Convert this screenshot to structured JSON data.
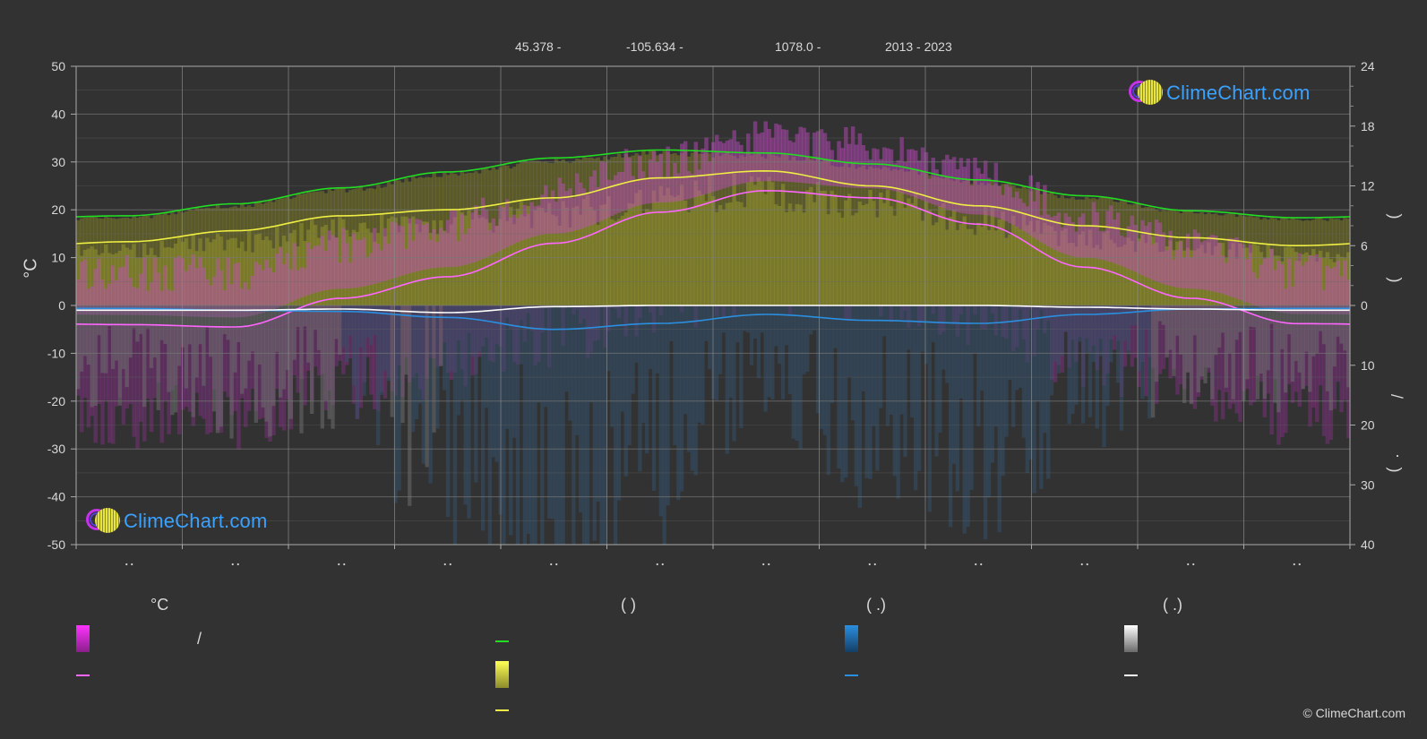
{
  "header": {
    "lat": "45.378 -",
    "lon": "-105.634 -",
    "elev": "1078.0 -",
    "years": "2013 - 2023"
  },
  "axes": {
    "left_unit": "°C",
    "right_top_paren": ")",
    "right_mid_paren": ")",
    "right_slash": "/",
    "right_dot": "·",
    "right_low_paren": ")"
  },
  "legend": {
    "col1_title": "°C",
    "col1_slash": "/",
    "col2_title": "(          )",
    "col3_title": "(    .)",
    "col4_title": "(    .)"
  },
  "logo_text": "ClimeChart.com",
  "copyright": "© ClimeChart.com",
  "colors": {
    "background": "#323232",
    "daylight": "#22dd22",
    "sunshine": "#eeee44",
    "temp_mean": "#ff66ff",
    "rain": "#2a8fe0",
    "snow": "#ffffff"
  },
  "chart_data": {
    "type": "line",
    "x": [
      "Jan",
      "Feb",
      "Mar",
      "Apr",
      "May",
      "Jun",
      "Jul",
      "Aug",
      "Sep",
      "Oct",
      "Nov",
      "Dec"
    ],
    "y_left_ticks": [
      50,
      40,
      30,
      20,
      10,
      0,
      -10,
      -20,
      -30,
      -40,
      -50
    ],
    "y_right_top_ticks": [
      24,
      18,
      12,
      6,
      0
    ],
    "y_right_bottom_ticks": [
      0,
      10,
      20,
      30,
      40
    ],
    "ylim_left": [
      -50,
      50
    ],
    "ylim_right_top_hours": [
      0,
      24
    ],
    "ylim_right_bottom_mm": [
      0,
      40
    ],
    "series": [
      {
        "name": "daylight_hours",
        "axis": "right_top",
        "values": [
          9.0,
          10.2,
          11.8,
          13.4,
          14.8,
          15.6,
          15.3,
          14.2,
          12.6,
          11.0,
          9.5,
          8.8
        ]
      },
      {
        "name": "sunshine_hours",
        "axis": "right_top",
        "values": [
          6.4,
          7.5,
          9.0,
          9.6,
          10.8,
          12.8,
          13.5,
          12.0,
          10.0,
          8.0,
          6.8,
          6.0
        ]
      },
      {
        "name": "temp_mean",
        "axis": "left",
        "values": [
          -4.0,
          -4.5,
          1.5,
          6.0,
          13.0,
          19.5,
          24.0,
          22.5,
          17.0,
          8.0,
          1.5,
          -3.8
        ]
      },
      {
        "name": "rain_mm",
        "axis": "right_bottom",
        "values": [
          0.5,
          0.8,
          1.0,
          2.0,
          4.0,
          3.0,
          1.5,
          2.5,
          3.0,
          1.5,
          0.6,
          0.5
        ]
      },
      {
        "name": "snow_mm",
        "axis": "right_bottom",
        "values": [
          0.8,
          0.8,
          0.6,
          1.2,
          0.2,
          0.0,
          0.0,
          0.0,
          0.0,
          0.3,
          0.6,
          0.8
        ]
      }
    ],
    "grid": true
  }
}
